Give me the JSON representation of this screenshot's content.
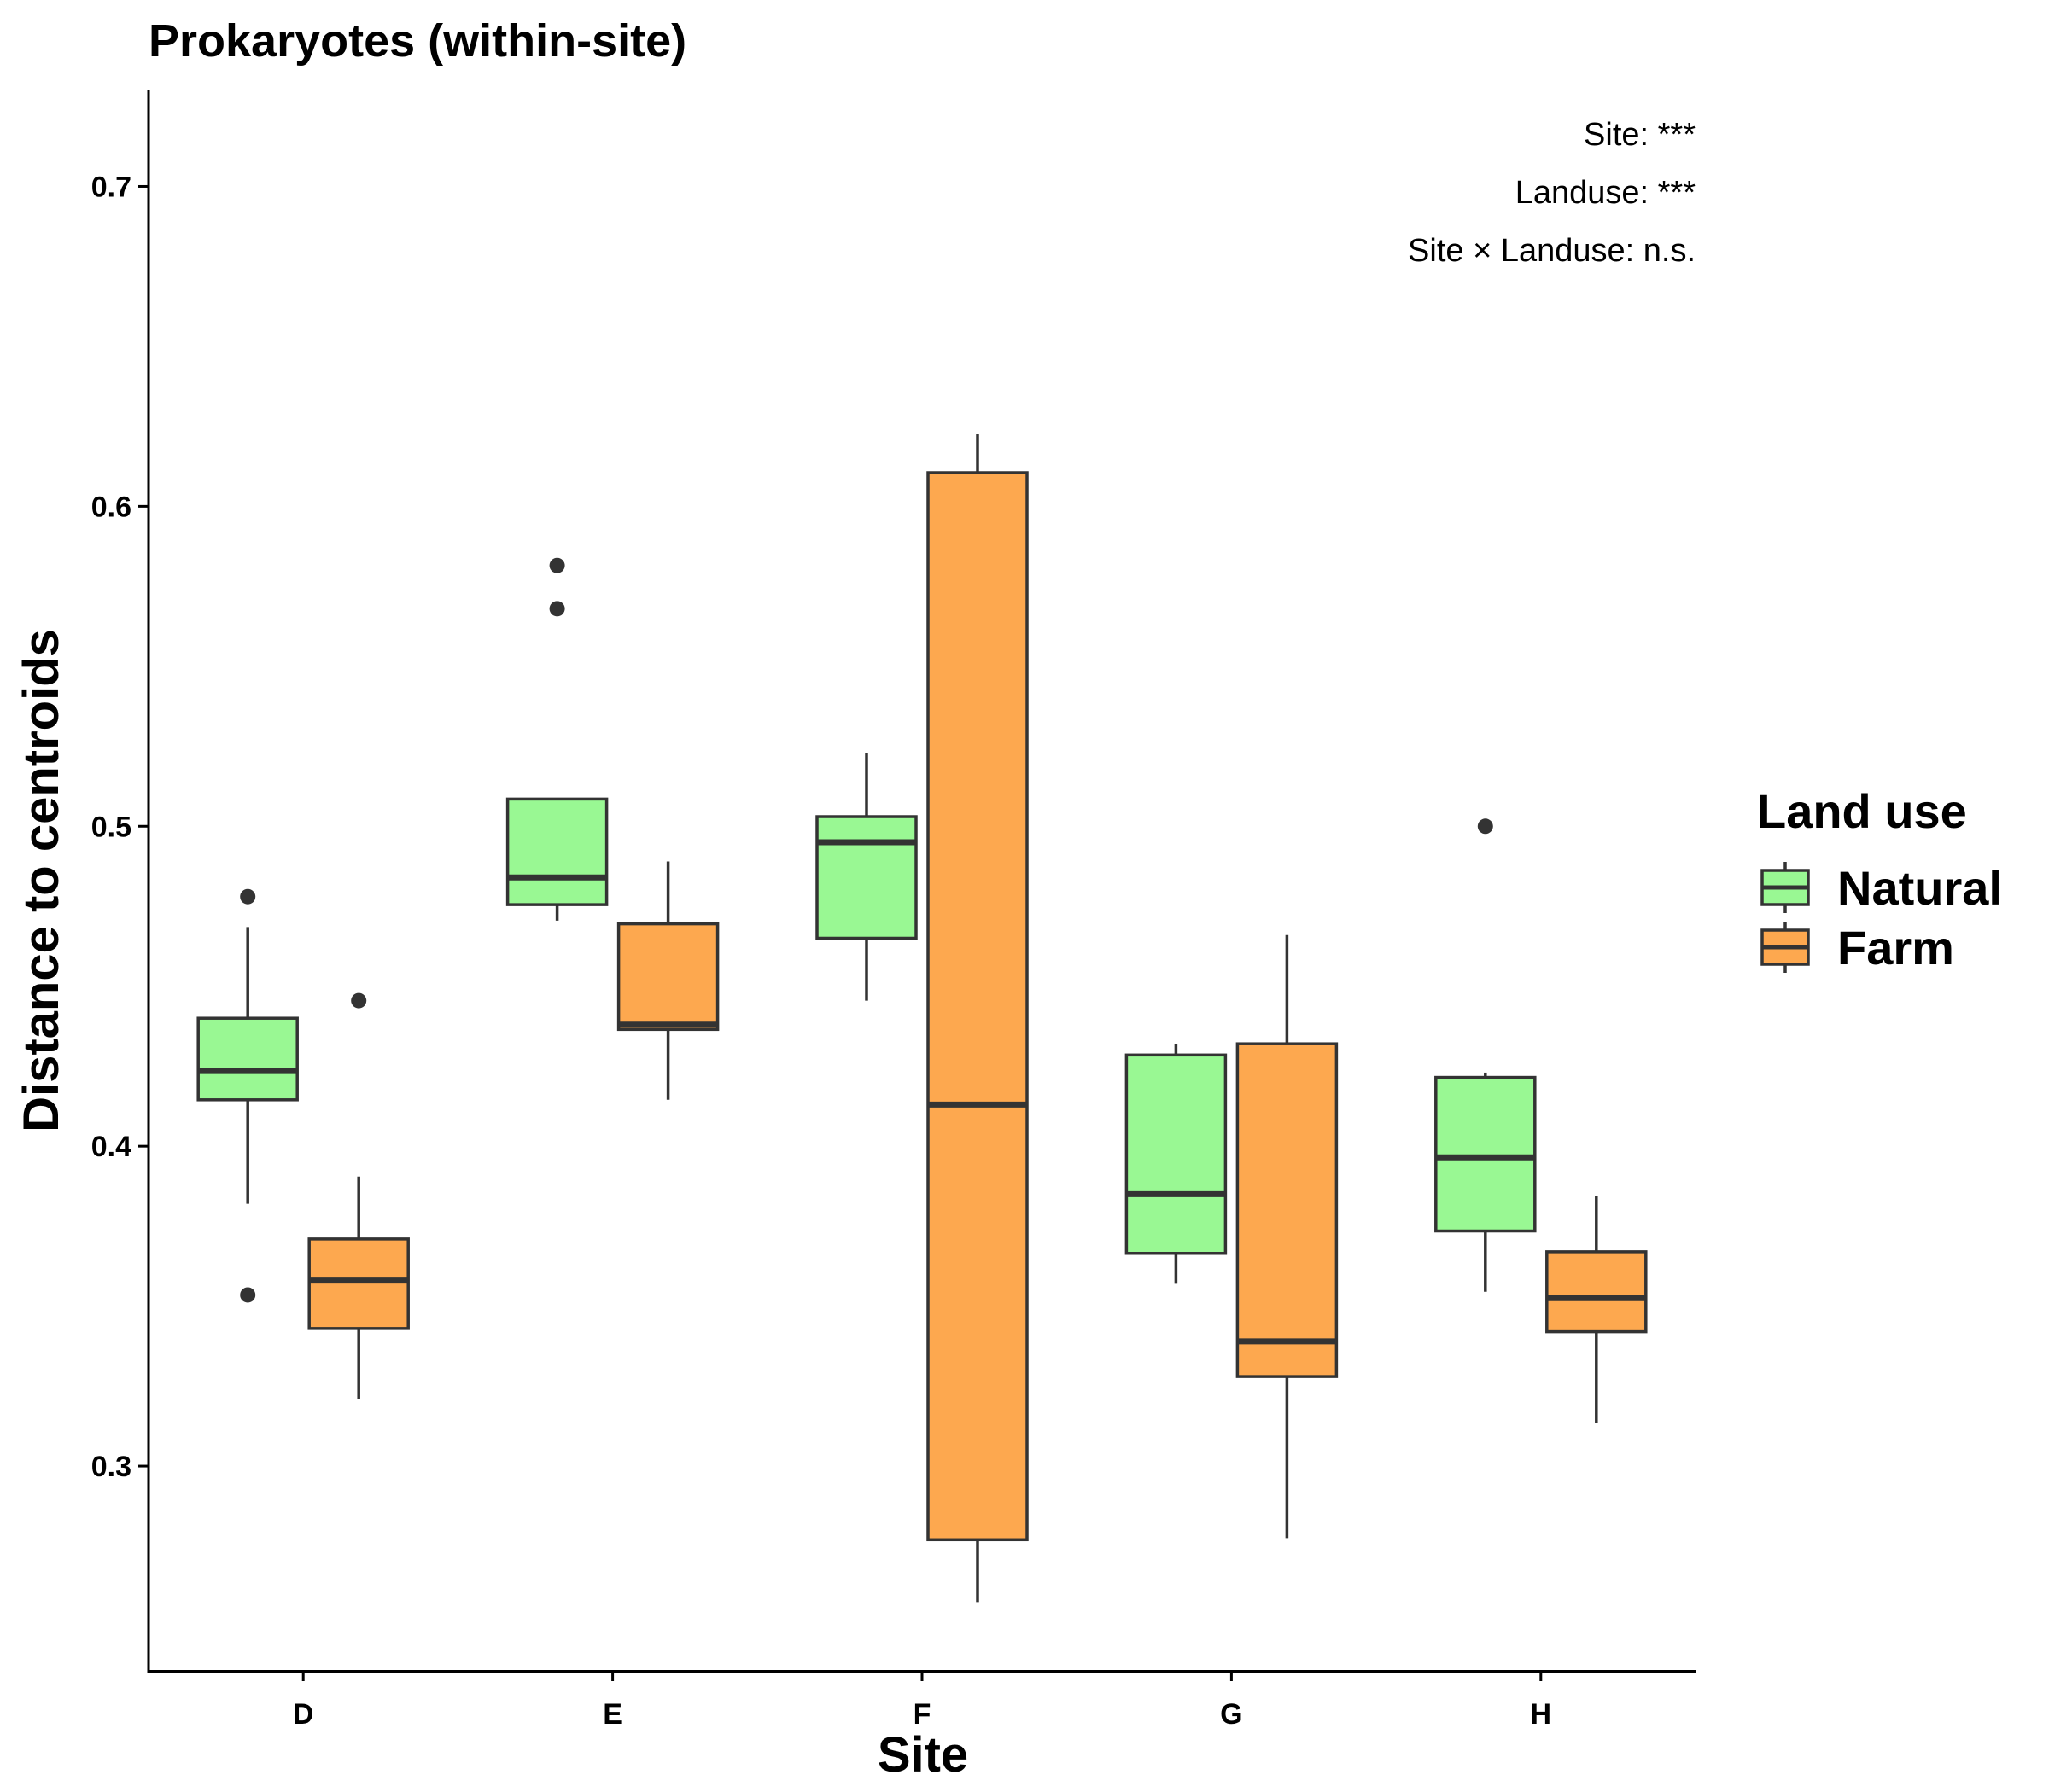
{
  "colors": {
    "natural": "#99F893",
    "farm": "#FDA84F",
    "stroke": "#333333",
    "axis": "#000000"
  },
  "chart_data": {
    "type": "box",
    "title": "Prokaryotes (within-site)",
    "xlabel": "Site",
    "ylabel": "Distance to centroids",
    "categories": [
      "D",
      "E",
      "F",
      "G",
      "H"
    ],
    "ylim": [
      0.236,
      0.73
    ],
    "yticks": [
      0.3,
      0.4,
      0.5,
      0.6,
      0.7
    ],
    "ytick_labels": [
      "0.3",
      "0.4",
      "0.5",
      "0.6",
      "0.7"
    ],
    "grid": false,
    "legend": {
      "title": "Land use",
      "position": "right",
      "entries": [
        {
          "key": "natural",
          "label": "Natural"
        },
        {
          "key": "farm",
          "label": "Farm"
        }
      ]
    },
    "annotations": [
      "Site: ***",
      "Landuse: ***",
      "Site × Landuse: n.s."
    ],
    "series": [
      {
        "name": "Natural",
        "color": "#99F893",
        "boxes": [
          {
            "category": "D",
            "whisker_low": 0.382,
            "q1": 0.4145,
            "median": 0.4235,
            "q3": 0.44,
            "whisker_high": 0.4685,
            "outliers": [
              0.478,
              0.3535
            ]
          },
          {
            "category": "E",
            "whisker_low": 0.4705,
            "q1": 0.4755,
            "median": 0.484,
            "q3": 0.5085,
            "whisker_high": 0.5085,
            "outliers": [
              0.5815,
              0.568
            ]
          },
          {
            "category": "F",
            "whisker_low": 0.4455,
            "q1": 0.465,
            "median": 0.495,
            "q3": 0.503,
            "whisker_high": 0.523,
            "outliers": []
          },
          {
            "category": "G",
            "whisker_low": 0.357,
            "q1": 0.3665,
            "median": 0.385,
            "q3": 0.4285,
            "whisker_high": 0.432,
            "outliers": []
          },
          {
            "category": "H",
            "whisker_low": 0.3545,
            "q1": 0.3735,
            "median": 0.3965,
            "q3": 0.4215,
            "whisker_high": 0.423,
            "outliers": [
              0.5
            ]
          }
        ]
      },
      {
        "name": "Farm",
        "color": "#FDA84F",
        "boxes": [
          {
            "category": "D",
            "whisker_low": 0.321,
            "q1": 0.343,
            "median": 0.358,
            "q3": 0.371,
            "whisker_high": 0.3905,
            "outliers": [
              0.4455
            ]
          },
          {
            "category": "E",
            "whisker_low": 0.4145,
            "q1": 0.4365,
            "median": 0.438,
            "q3": 0.4695,
            "whisker_high": 0.489,
            "outliers": []
          },
          {
            "category": "F",
            "whisker_low": 0.2575,
            "q1": 0.277,
            "median": 0.413,
            "q3": 0.6105,
            "whisker_high": 0.6225,
            "outliers": []
          },
          {
            "category": "G",
            "whisker_low": 0.2775,
            "q1": 0.328,
            "median": 0.339,
            "q3": 0.432,
            "whisker_high": 0.466,
            "outliers": []
          },
          {
            "category": "H",
            "whisker_low": 0.3135,
            "q1": 0.342,
            "median": 0.3525,
            "q3": 0.367,
            "whisker_high": 0.3845,
            "outliers": []
          }
        ]
      }
    ]
  }
}
